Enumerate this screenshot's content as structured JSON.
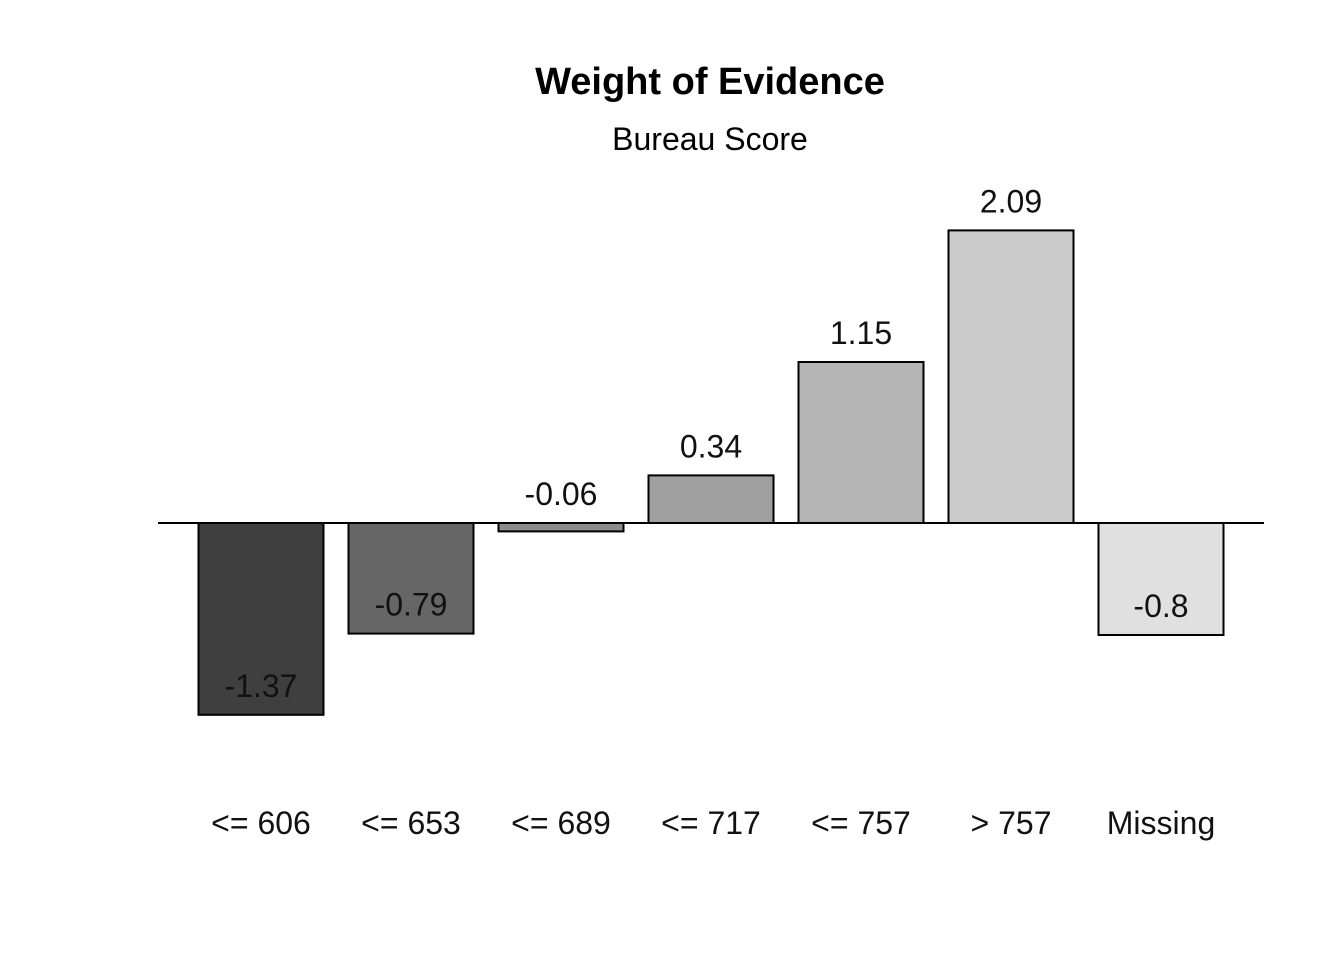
{
  "chart_data": {
    "type": "bar",
    "title": "Weight of Evidence",
    "subtitle": "Bureau Score",
    "categories": [
      "<= 606",
      "<= 653",
      "<= 689",
      "<= 717",
      "<= 757",
      "> 757",
      "Missing"
    ],
    "values": [
      -1.37,
      -0.79,
      -0.06,
      0.34,
      1.15,
      2.09,
      -0.8
    ],
    "value_labels": [
      "-1.37",
      "-0.79",
      "-0.06",
      "0.34",
      "1.15",
      "2.09",
      "-0.8"
    ],
    "bar_colors": [
      "#3f3f3f",
      "#666666",
      "#8c8c8c",
      "#a0a0a0",
      "#b4b4b4",
      "#cbcbcb",
      "#e0e0e0"
    ],
    "xlabel": "",
    "ylabel": "",
    "ylim": [
      -1.37,
      2.09
    ],
    "baseline": 0,
    "grid": false,
    "legend": "none"
  }
}
